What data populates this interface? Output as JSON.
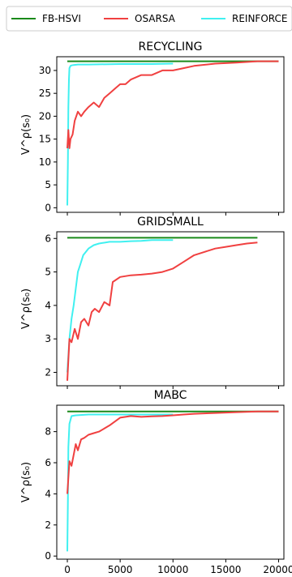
{
  "legend": [
    {
      "name": "FB-HSVI",
      "color": "#1a8a1a"
    },
    {
      "name": "OSARSA",
      "color": "#f04040"
    },
    {
      "name": "REINFORCE",
      "color": "#40f0f0"
    }
  ],
  "chart_data": [
    {
      "type": "line",
      "title": "RECYCLING",
      "ylabel": "V^ρ(s₀)",
      "xlim": [
        -1000,
        20500
      ],
      "ylim": [
        -1,
        33
      ],
      "yticks": [
        0,
        5,
        10,
        15,
        20,
        25,
        30
      ],
      "xticks": [
        0,
        5000,
        10000,
        15000,
        20000
      ],
      "show_xtick_labels": false,
      "series": [
        {
          "name": "FB-HSVI",
          "color": "#1a8a1a",
          "x": [
            0,
            20000
          ],
          "y": [
            32,
            32
          ]
        },
        {
          "name": "REINFORCE",
          "color": "#40f0f0",
          "x": [
            0,
            50,
            100,
            150,
            200,
            300,
            400,
            600,
            1000,
            2000,
            5000,
            8000,
            10000
          ],
          "y": [
            0.5,
            10,
            22,
            28,
            30.5,
            31,
            31.1,
            31.2,
            31.3,
            31.3,
            31.4,
            31.4,
            31.5
          ]
        },
        {
          "name": "OSARSA",
          "color": "#f04040",
          "x": [
            0,
            100,
            200,
            300,
            500,
            700,
            1000,
            1300,
            1600,
            2000,
            2500,
            3000,
            3500,
            4000,
            4500,
            5000,
            5500,
            6000,
            7000,
            8000,
            9000,
            10000,
            11000,
            12000,
            14000,
            16000,
            18000,
            20000
          ],
          "y": [
            13,
            17,
            13,
            15,
            16,
            19,
            21,
            20,
            21,
            22,
            23,
            22,
            24,
            25,
            26,
            27,
            27,
            28,
            29,
            29,
            30,
            30,
            30.5,
            31,
            31.5,
            31.7,
            32,
            32
          ]
        }
      ]
    },
    {
      "type": "line",
      "title": "GRIDSMALL",
      "ylabel": "V^ρ(s₀)",
      "xlim": [
        -1000,
        20500
      ],
      "ylim": [
        1.6,
        6.2
      ],
      "yticks": [
        2,
        3,
        4,
        5,
        6
      ],
      "xticks": [
        0,
        5000,
        10000,
        15000,
        20000
      ],
      "show_xtick_labels": false,
      "series": [
        {
          "name": "FB-HSVI",
          "color": "#1a8a1a",
          "x": [
            0,
            18000
          ],
          "y": [
            6.02,
            6.02
          ]
        },
        {
          "name": "REINFORCE",
          "color": "#40f0f0",
          "x": [
            0,
            100,
            200,
            400,
            600,
            800,
            1000,
            1200,
            1500,
            2000,
            2500,
            3000,
            4000,
            5000,
            6000,
            7000,
            8000,
            9000,
            10000
          ],
          "y": [
            2.0,
            2.5,
            3.0,
            3.6,
            4.0,
            4.5,
            5.0,
            5.2,
            5.5,
            5.7,
            5.8,
            5.85,
            5.9,
            5.9,
            5.92,
            5.93,
            5.95,
            5.95,
            5.95
          ]
        },
        {
          "name": "OSARSA",
          "color": "#f04040",
          "x": [
            0,
            200,
            400,
            700,
            1000,
            1300,
            1600,
            2000,
            2300,
            2600,
            3000,
            3500,
            4000,
            4300,
            5000,
            6000,
            7000,
            8000,
            9000,
            10000,
            11000,
            12000,
            13000,
            14000,
            15000,
            16000,
            17000,
            18000
          ],
          "y": [
            1.75,
            3.0,
            2.9,
            3.3,
            3.0,
            3.5,
            3.6,
            3.4,
            3.8,
            3.9,
            3.8,
            4.1,
            4.0,
            4.7,
            4.85,
            4.9,
            4.92,
            4.95,
            5.0,
            5.1,
            5.3,
            5.5,
            5.6,
            5.7,
            5.75,
            5.8,
            5.85,
            5.88
          ]
        }
      ]
    },
    {
      "type": "line",
      "title": "MABC",
      "ylabel": "V^ρ(s₀)",
      "xlim": [
        -1000,
        20500
      ],
      "ylim": [
        -0.2,
        9.7
      ],
      "yticks": [
        0,
        2,
        4,
        6,
        8
      ],
      "xticks": [
        0,
        5000,
        10000,
        15000,
        20000
      ],
      "show_xtick_labels": true,
      "xtick_labels": [
        "0",
        "5000",
        "10000",
        "15000",
        "20000"
      ],
      "series": [
        {
          "name": "FB-HSVI",
          "color": "#1a8a1a",
          "x": [
            0,
            20000
          ],
          "y": [
            9.3,
            9.3
          ]
        },
        {
          "name": "REINFORCE",
          "color": "#40f0f0",
          "x": [
            0,
            50,
            100,
            200,
            400,
            800,
            2000,
            5000,
            8000,
            10000
          ],
          "y": [
            0.3,
            3.5,
            7.0,
            8.5,
            9.0,
            9.05,
            9.1,
            9.1,
            9.1,
            9.1
          ]
        },
        {
          "name": "OSARSA",
          "color": "#f04040",
          "x": [
            0,
            200,
            400,
            600,
            800,
            1000,
            1300,
            1600,
            2000,
            2500,
            3000,
            3500,
            4000,
            5000,
            5500,
            6000,
            7000,
            8000,
            9000,
            10000,
            11000,
            12000,
            14000,
            16000,
            18000,
            20000
          ],
          "y": [
            4.0,
            6.1,
            5.8,
            6.5,
            7.2,
            6.8,
            7.5,
            7.6,
            7.8,
            7.9,
            8.0,
            8.2,
            8.4,
            8.9,
            8.95,
            9.0,
            8.95,
            8.98,
            9.0,
            9.05,
            9.1,
            9.15,
            9.2,
            9.25,
            9.3,
            9.3
          ]
        }
      ]
    }
  ]
}
